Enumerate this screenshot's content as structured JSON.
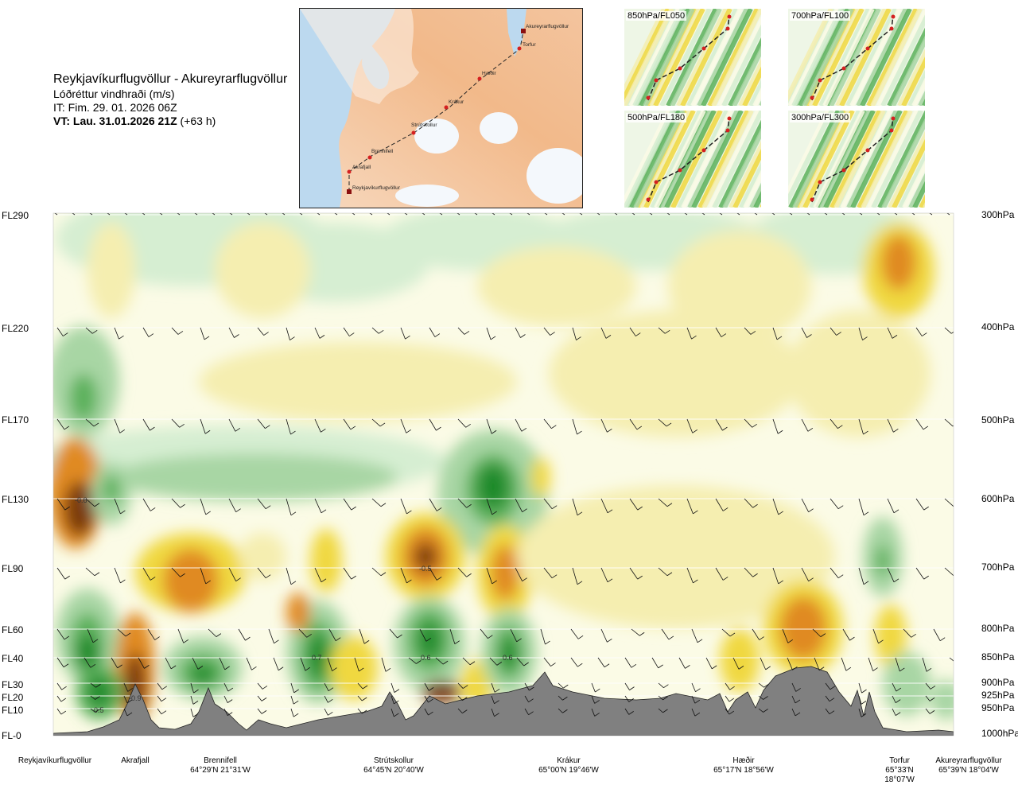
{
  "header": {
    "route": "Reykjavíkurflugvöllur - Akureyrarflugvöllur",
    "variable": "Lóðréttur vindhraði (m/s)",
    "issue_time": "IT: Fim. 29. 01. 2026 06Z",
    "valid_time_bold": "VT: Lau. 31.01.2026 21Z",
    "valid_time_offset": "(+63 h)"
  },
  "route_map": {
    "points": [
      "Akureyrarflugvöllur",
      "Torfur",
      "Hæðir",
      "Krákur",
      "Strútskollur",
      "Brennifell",
      "Akrafjall",
      "Reykjavíkurflugvöllur"
    ]
  },
  "level_maps": [
    {
      "label": "850hPa/FL050"
    },
    {
      "label": "700hPa/FL100"
    },
    {
      "label": "500hPa/FL180"
    },
    {
      "label": "300hPa/FL300"
    }
  ],
  "colors": {
    "strong_sink": "#7a3a10",
    "sink": "#e08a20",
    "weak_sink": "#f0d840",
    "faint_sink": "#f5eeb0",
    "neutral": "#fbfbe6",
    "faint_rise": "#d6eed2",
    "weak_rise": "#a8d6a4",
    "rise": "#5cb15c",
    "strong_rise": "#1b8a2c",
    "terrain": "#808080"
  },
  "chart_data": {
    "type": "heatmap",
    "title": "Lóðréttur vindhraði (m/s)",
    "levels": [
      {
        "fl": "FL290",
        "pressure": "300hPa"
      },
      {
        "fl": "FL220",
        "pressure": "400hPa"
      },
      {
        "fl": "FL170",
        "pressure": "500hPa"
      },
      {
        "fl": "FL130",
        "pressure": "600hPa"
      },
      {
        "fl": "FL90",
        "pressure": "700hPa"
      },
      {
        "fl": "FL60",
        "pressure": "800hPa"
      },
      {
        "fl": "FL40",
        "pressure": "850hPa"
      },
      {
        "fl": "FL30",
        "pressure": "900hPa"
      },
      {
        "fl": "FL20",
        "pressure": "925hPa"
      },
      {
        "fl": "FL10",
        "pressure": "950hPa"
      },
      {
        "fl": "FL-0",
        "pressure": "1000hPa"
      }
    ],
    "locations": [
      {
        "name": "Reykjavíkurflugvöllur",
        "coords": ""
      },
      {
        "name": "Akrafjall",
        "coords": ""
      },
      {
        "name": "Brennifell",
        "coords": "64°29'N 21°31'W"
      },
      {
        "name": "Strútskollur",
        "coords": "64°45'N 20°40'W"
      },
      {
        "name": "Krákur",
        "coords": "65°00'N 19°46'W"
      },
      {
        "name": "Hæðir",
        "coords": "65°17'N 18°56'W"
      },
      {
        "name": "Torfur",
        "coords": "65°33'N 18°07'W"
      },
      {
        "name": "Akureyrarflugvöllur",
        "coords": "65°39'N 18°04'W"
      }
    ],
    "annotations": [
      "-0.6",
      "-0.5",
      "0.7",
      "0.6",
      "0.6",
      "0.5",
      "-0.9"
    ],
    "legend": "none"
  }
}
